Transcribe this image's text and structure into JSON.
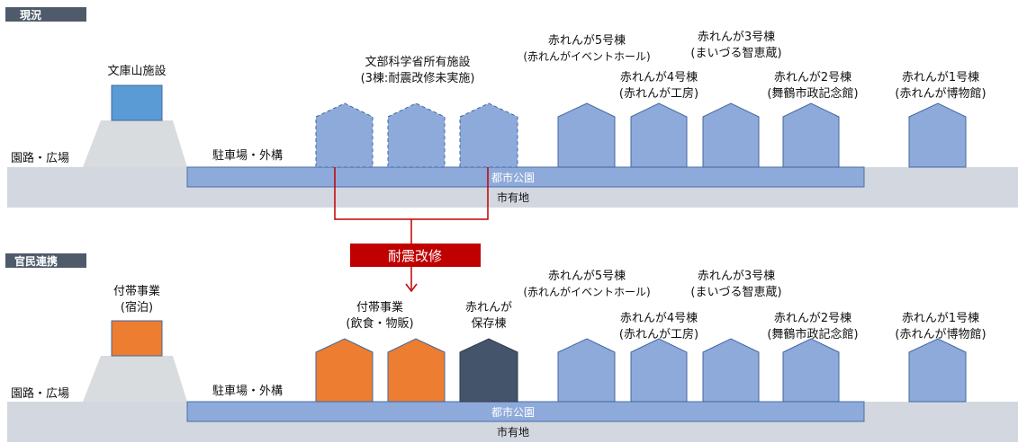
{
  "colors": {
    "header_bg": "#4f5b6b",
    "ground": "#d3d8e0",
    "mound": "#d9dcdf",
    "park_fill": "#8eaadb",
    "park_stroke": "#4a6fa5",
    "building_fill": "#8eaadb",
    "building_stroke": "#41679e",
    "facility_blue": "#5b9bd5",
    "orange": "#ed7d31",
    "navy": "#44546a",
    "red": "#c00000"
  },
  "top": {
    "header": "現況",
    "facility_label": "文庫山施設",
    "road_label": "園路・広場",
    "parking_label": "駐車場・外構",
    "park_label": "都市公園",
    "land_label": "市有地",
    "mext": {
      "line1": "文部科学省所有施設",
      "line2": "(3棟:耐震改修未実施)"
    },
    "b5": {
      "line1": "赤れんが5号棟",
      "line2": "(赤れんがイベントホール)"
    },
    "b4": {
      "line1": "赤れんが4号棟",
      "line2": "(赤れんが工房)"
    },
    "b3": {
      "line1": "赤れんが3号棟",
      "line2": "(まいづる智恵蔵)"
    },
    "b2": {
      "line1": "赤れんが2号棟",
      "line2": "(舞鶴市政記念館)"
    },
    "b1": {
      "line1": "赤れんが1号棟",
      "line2": "(赤れんが博物館)"
    }
  },
  "transition": {
    "label": "耐震改修"
  },
  "bottom": {
    "header": "官民連携",
    "facility": {
      "line1": "付帯事業",
      "line2": "(宿泊)"
    },
    "road_label": "園路・広場",
    "parking_label": "駐車場・外構",
    "park_label": "都市公園",
    "land_label": "市有地",
    "food": {
      "line1": "付帯事業",
      "line2": "(飲食・物販)"
    },
    "storage": {
      "line1": "赤れんが",
      "line2": "保存棟"
    },
    "b5": {
      "line1": "赤れんが5号棟",
      "line2": "(赤れんがイベントホール)"
    },
    "b4": {
      "line1": "赤れんが4号棟",
      "line2": "(赤れんが工房)"
    },
    "b3": {
      "line1": "赤れんが3号棟",
      "line2": "(まいづる智恵蔵)"
    },
    "b2": {
      "line1": "赤れんが2号棟",
      "line2": "(舞鶴市政記念館)"
    },
    "b1": {
      "line1": "赤れんが1号棟",
      "line2": "(赤れんが博物館)"
    }
  }
}
